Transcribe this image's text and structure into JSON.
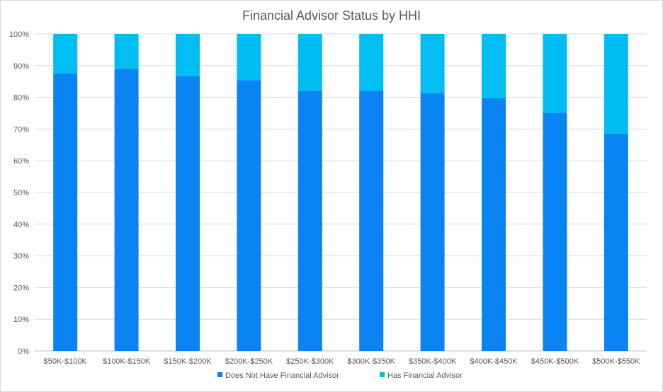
{
  "chart_data": {
    "type": "bar",
    "stacked": true,
    "title": "Financial Advisor Status by HHI",
    "xlabel": "",
    "ylabel": "",
    "ylim": [
      0,
      100
    ],
    "yticks": [
      "0%",
      "10%",
      "20%",
      "30%",
      "40%",
      "50%",
      "60%",
      "70%",
      "80%",
      "90%",
      "100%"
    ],
    "grid": true,
    "legend_position": "bottom",
    "categories": [
      "$50K-$100K",
      "$100K-$150K",
      "$150K-$200K",
      "$200K-$250K",
      "$250K-$300K",
      "$300K-$350K",
      "$350K-$400K",
      "$400K-$450K",
      "$450K-$500K",
      "$500K-$550K"
    ],
    "series": [
      {
        "name": "Does Not Have Financial Advisor",
        "color": "#0b84f3",
        "values": [
          87.5,
          89.0,
          86.7,
          85.4,
          82.1,
          82.1,
          81.4,
          79.7,
          75.1,
          68.6
        ]
      },
      {
        "name": "Has Financial Advisor",
        "color": "#00bef2",
        "values": [
          12.5,
          11.0,
          13.3,
          14.6,
          17.9,
          17.9,
          18.6,
          20.3,
          24.9,
          31.4
        ]
      }
    ]
  }
}
